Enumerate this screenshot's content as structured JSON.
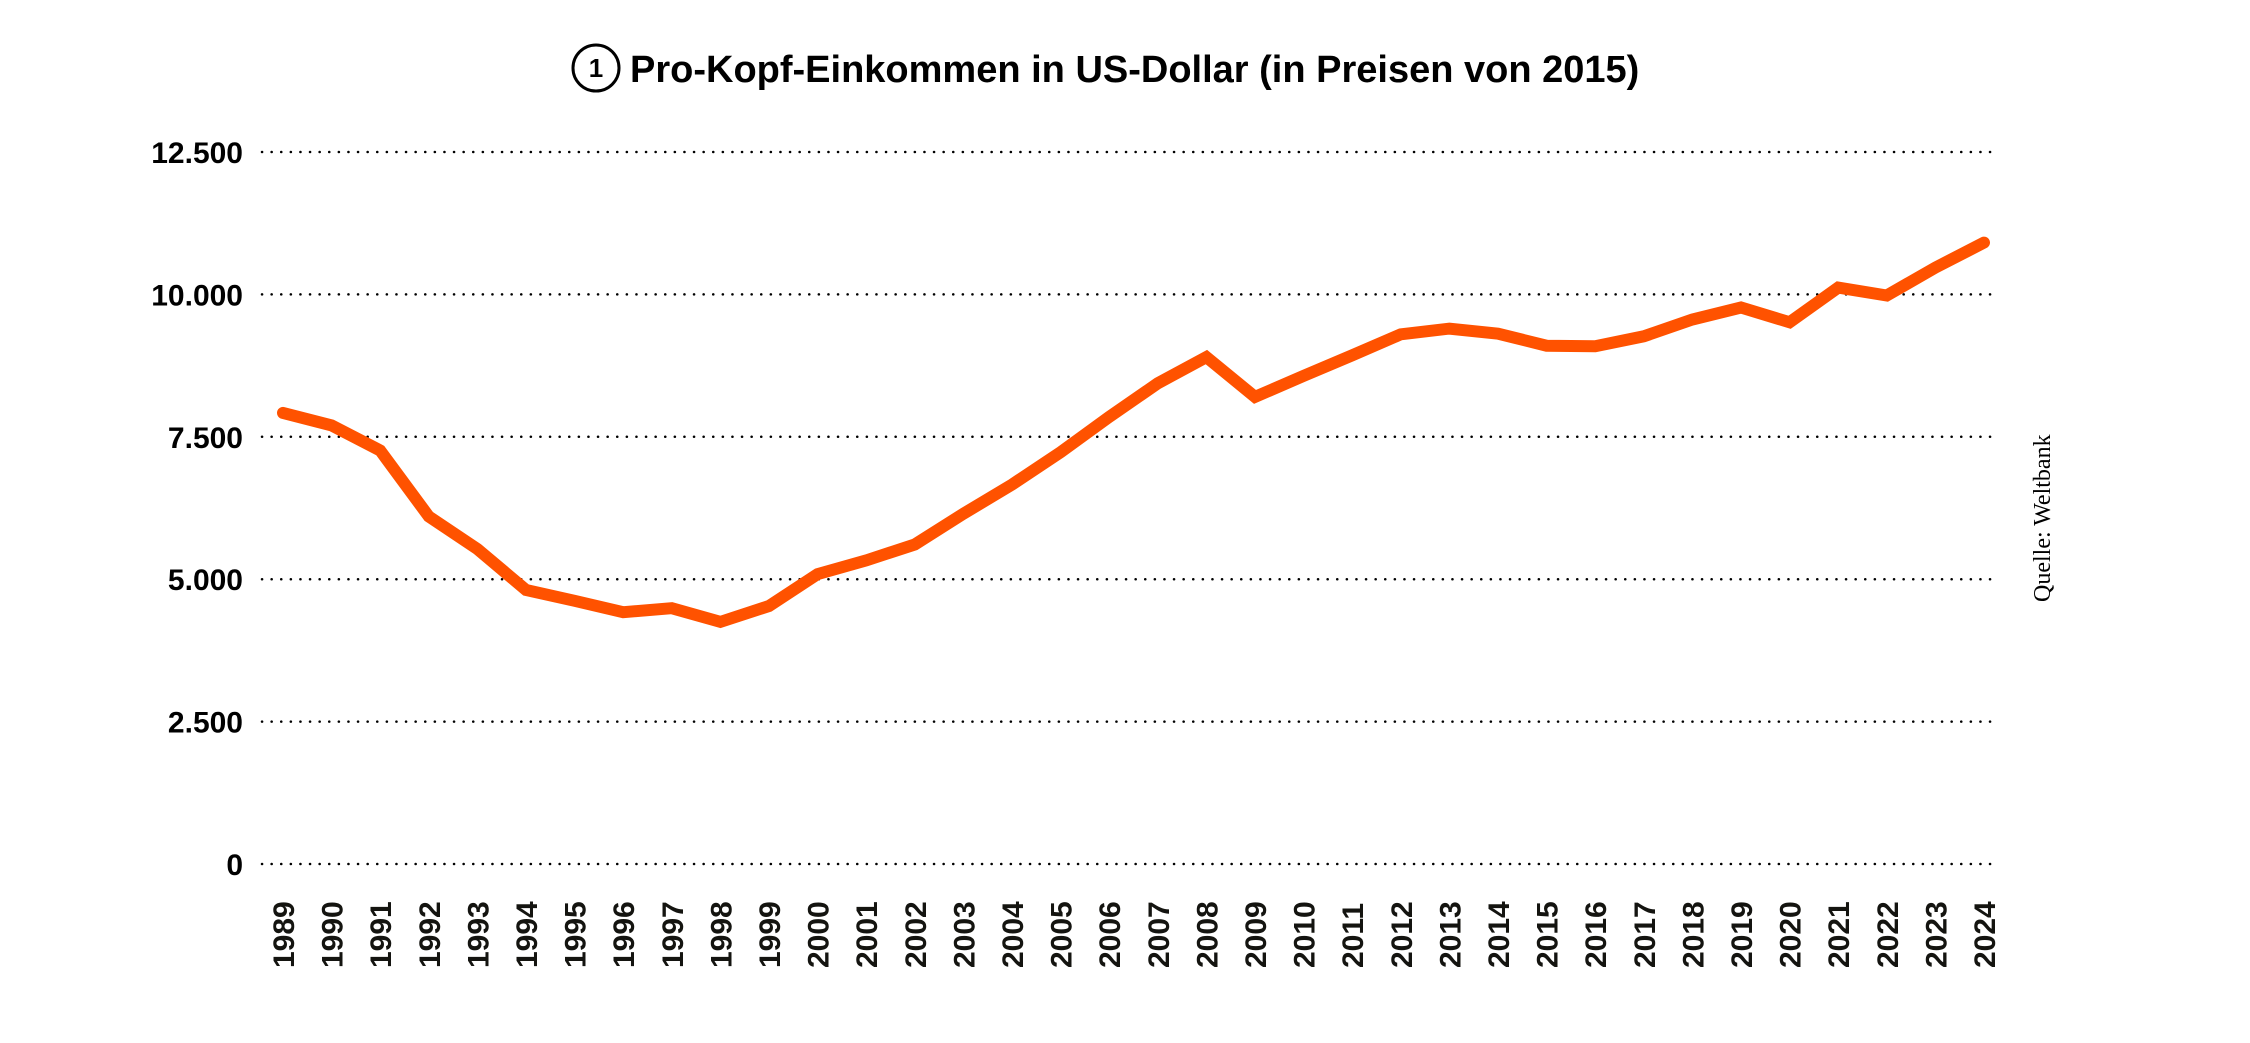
{
  "chart_data": {
    "type": "line",
    "badge": "1",
    "title": "Pro-Kopf-Einkommen in US-Dollar (in Preisen von 2015)",
    "xlabel": "",
    "ylabel": "",
    "source": "Quelle: Weltbank",
    "ylim": [
      0,
      12500
    ],
    "grid": true,
    "y_ticks": [
      0,
      2500,
      5000,
      7500,
      10000,
      12500
    ],
    "y_tick_labels": [
      "0",
      "2.500",
      "5.000",
      "7.500",
      "10.000",
      "12.500"
    ],
    "x": [
      "1989",
      "1990",
      "1991",
      "1992",
      "1993",
      "1994",
      "1995",
      "1996",
      "1997",
      "1998",
      "1999",
      "2000",
      "2001",
      "2002",
      "2003",
      "2004",
      "2005",
      "2006",
      "2007",
      "2008",
      "2009",
      "2010",
      "2011",
      "2012",
      "2013",
      "2014",
      "2015",
      "2016",
      "2017",
      "2018",
      "2019",
      "2020",
      "2021",
      "2022",
      "2023",
      "2024"
    ],
    "series": [
      {
        "name": "Pro-Kopf-Einkommen",
        "color": "#FF5200",
        "values": [
          7920,
          7700,
          7260,
          6100,
          5530,
          4810,
          4620,
          4420,
          4490,
          4250,
          4530,
          5090,
          5330,
          5610,
          6150,
          6660,
          7230,
          7850,
          8440,
          8900,
          8200,
          8570,
          8930,
          9300,
          9400,
          9310,
          9100,
          9090,
          9265,
          9560,
          9770,
          9510,
          10120,
          9980,
          10470,
          10910
        ]
      }
    ]
  }
}
